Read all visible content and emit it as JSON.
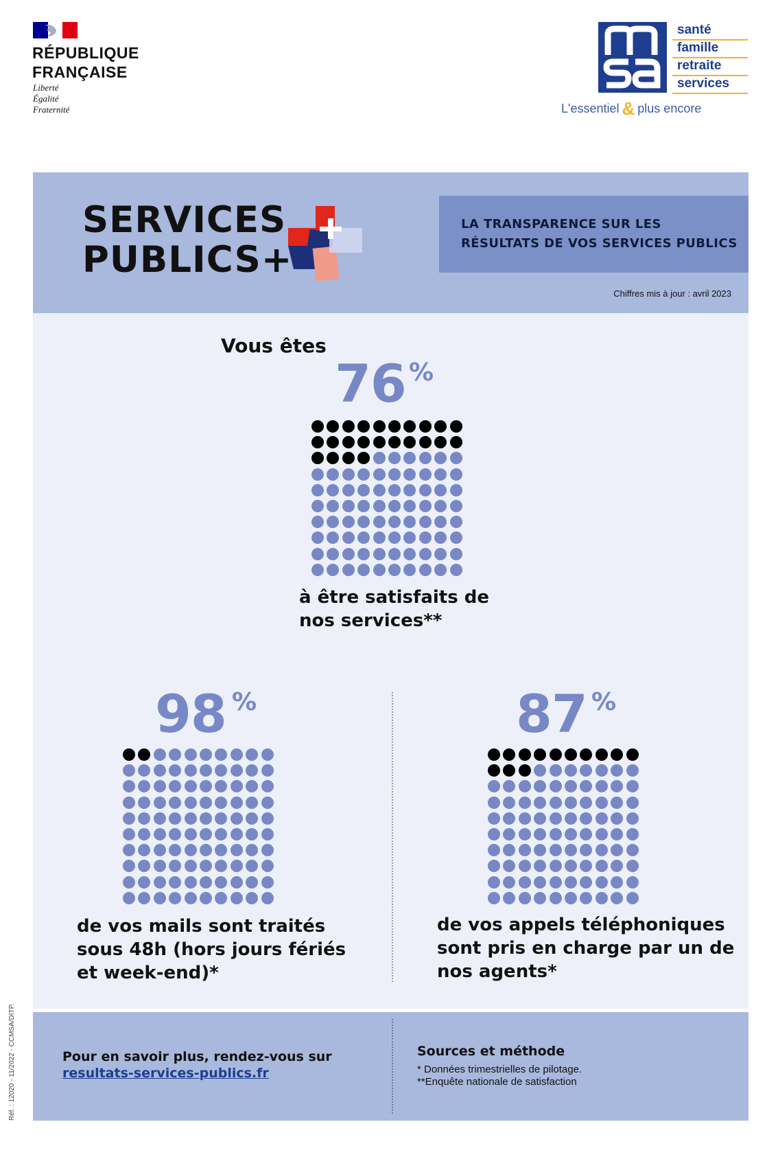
{
  "republique": {
    "title_lines": [
      "RÉPUBLIQUE",
      "FRANÇAISE"
    ],
    "motto": [
      "Liberté",
      "Égalité",
      "Fraternité"
    ],
    "flag_colors": [
      "#000091",
      "#ffffff",
      "#e1000f"
    ]
  },
  "msa": {
    "logo_letters": [
      "m",
      "sa"
    ],
    "words": [
      "santé",
      "famille",
      "retraite",
      "services"
    ],
    "tagline_pre": "L'essentiel",
    "tagline_amp": "&",
    "tagline_post": "plus encore",
    "colors": {
      "blue": "#1e3e90",
      "gold": "#f5b324"
    }
  },
  "header": {
    "title_lines": [
      "SERVICES",
      "PUBLICS+"
    ],
    "box_lines": [
      "LA TRANSPARENCE SUR LES",
      "RÉSULTATS DE VOS SERVICES PUBLICS"
    ],
    "updated": "Chiffres mis à jour : avril 2023"
  },
  "stats": {
    "satisfaction": {
      "intro": "Vous êtes",
      "value": 76,
      "value_text": "76",
      "unit": "%",
      "caption_lines": [
        "à être satisfaits de",
        "nos services**"
      ]
    },
    "mails": {
      "value": 98,
      "value_text": "98",
      "unit": "%",
      "caption_lines": [
        "de vos mails sont traités",
        "sous 48h (hors jours fériés",
        "et week-end)*"
      ]
    },
    "calls": {
      "value": 87,
      "value_text": "87",
      "unit": "%",
      "caption_lines": [
        "de vos appels téléphoniques",
        "sont pris en charge par un de",
        "nos agents*"
      ]
    }
  },
  "footer": {
    "more_label": "Pour en savoir plus, rendez-vous sur",
    "more_link": "resultats-services-publics.fr",
    "sources_title": "Sources et méthode",
    "sources": [
      "* Données trimestrielles de pilotage.",
      "**Enquête nationale de satisfaction"
    ]
  },
  "reference": "Réf. : 12020 - 11/2022 - CCMSA/DITP.",
  "colors": {
    "accent": "#7888c6",
    "band": "#a9b8dd",
    "panel": "#edf0f8",
    "box": "#7c90c8"
  }
}
